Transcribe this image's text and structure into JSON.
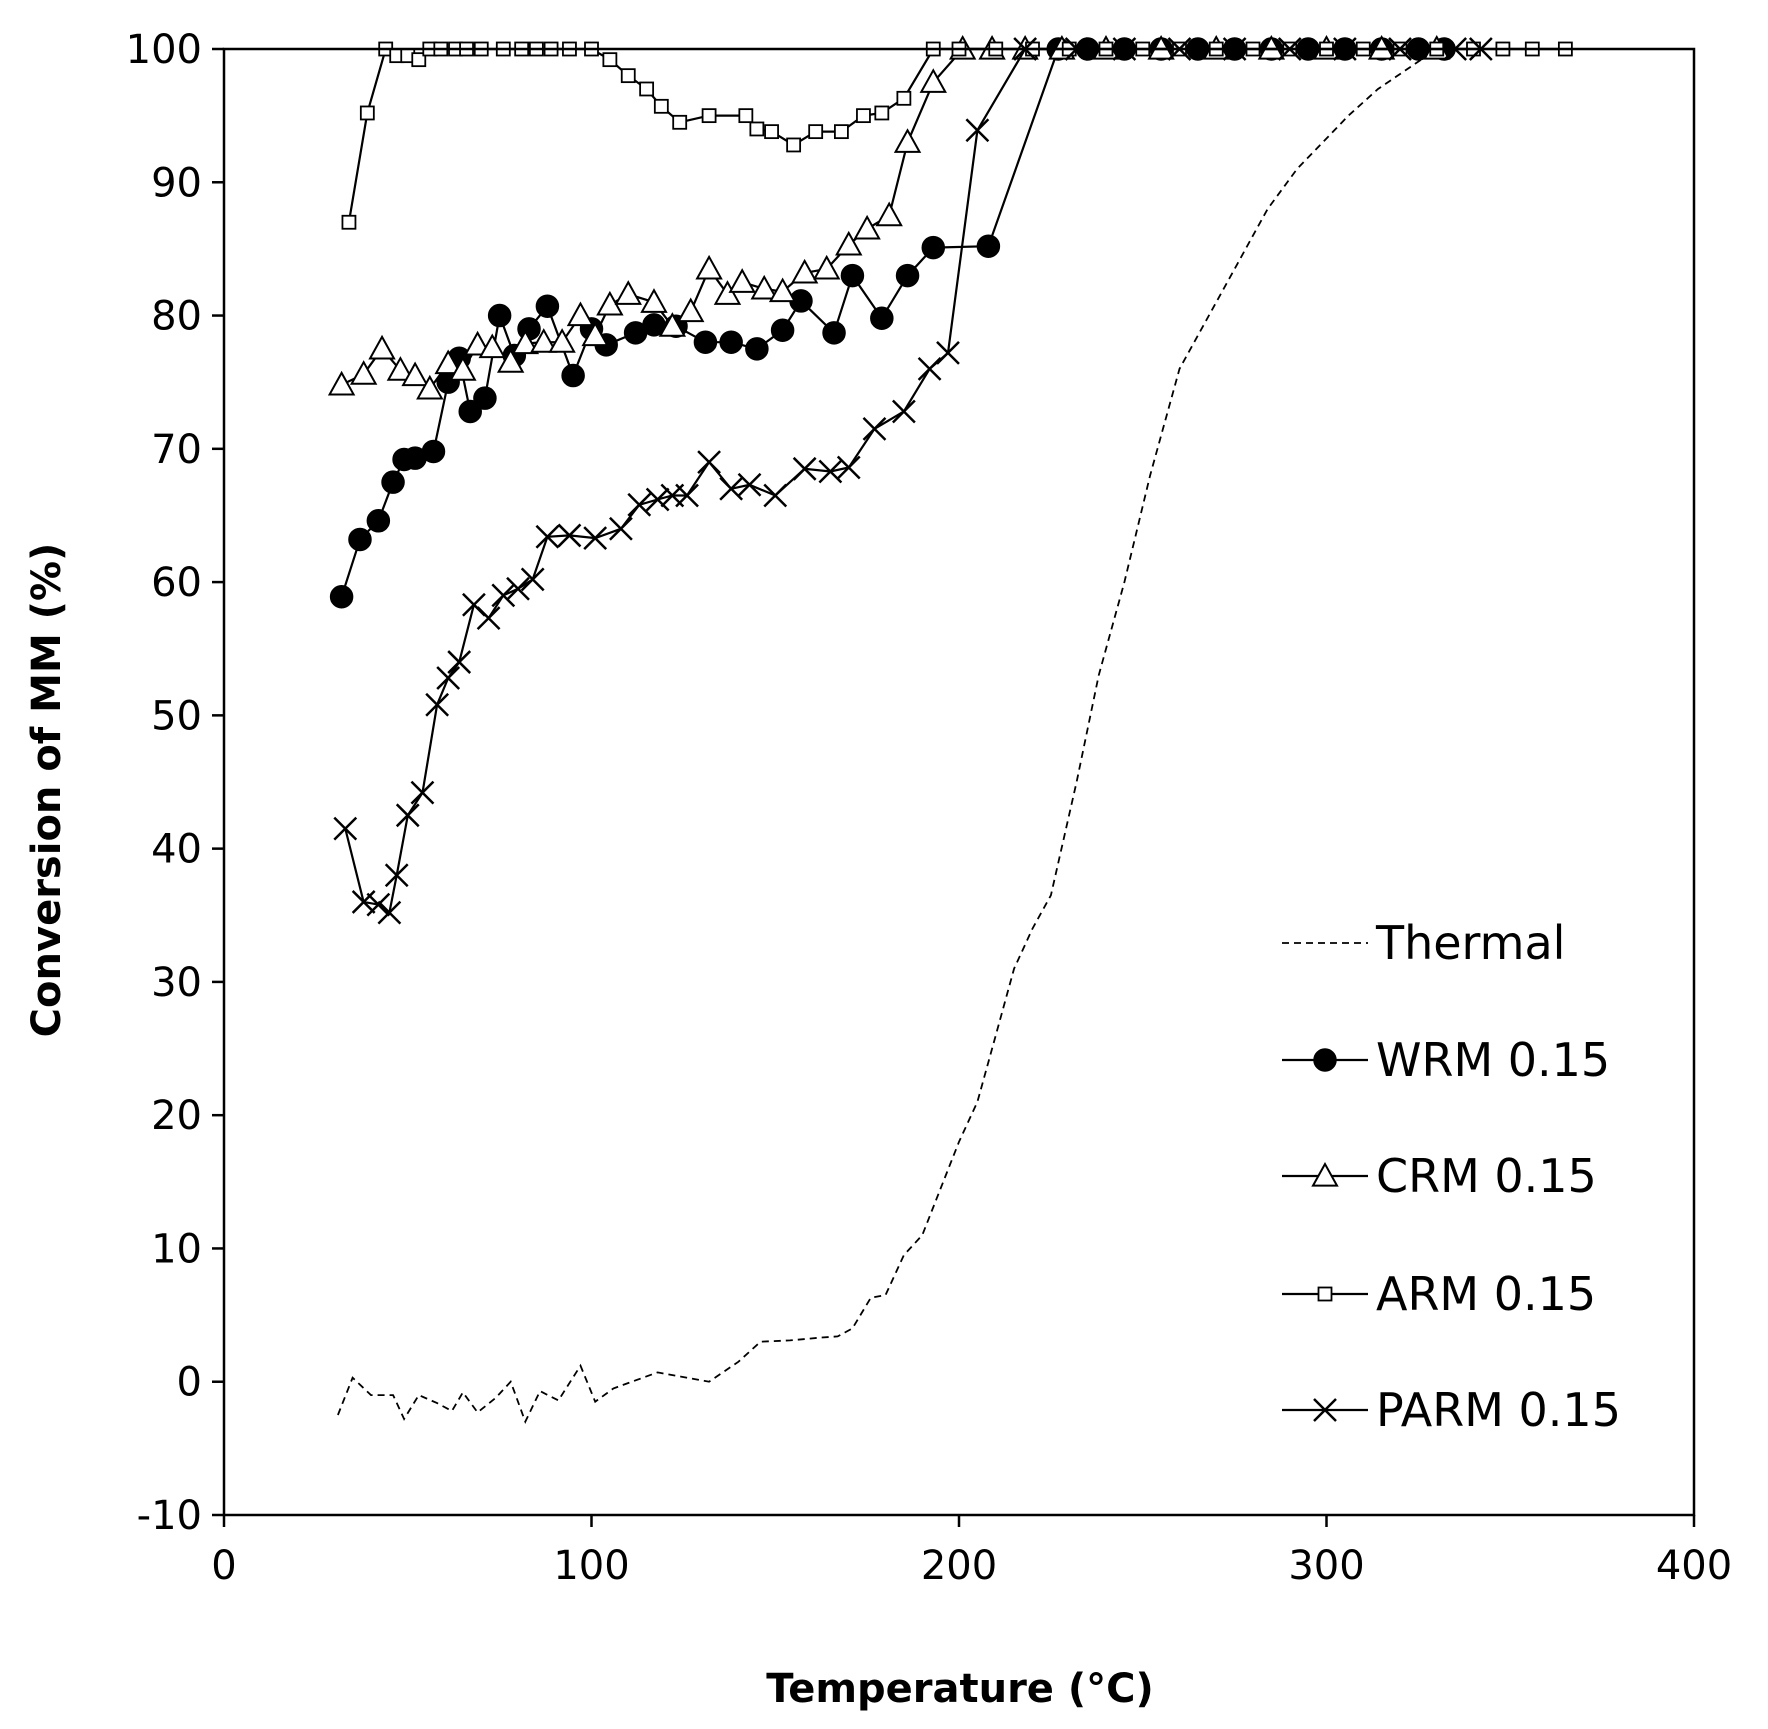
{
  "chart_data": {
    "type": "line",
    "title": "",
    "xlabel": "Temperature (°C)",
    "ylabel": "Conversion of MM (%)",
    "xlim": [
      0,
      400
    ],
    "ylim": [
      -10,
      100
    ],
    "xticks": [
      0,
      100,
      200,
      300,
      400
    ],
    "yticks": [
      -10,
      0,
      10,
      20,
      30,
      40,
      50,
      60,
      70,
      80,
      90,
      100
    ],
    "grid": false,
    "legend_position": "bottom-right",
    "series": [
      {
        "name": "Thermal",
        "style": "dashed",
        "marker": "none",
        "x": [
          31,
          35,
          40,
          46,
          49,
          53,
          58,
          62,
          65,
          69,
          74,
          78,
          82,
          86,
          91,
          97,
          101,
          106,
          111,
          118,
          124,
          132,
          140,
          146,
          154,
          162,
          167,
          171,
          176,
          180,
          185,
          190,
          195,
          200,
          205,
          210,
          215,
          220,
          225,
          232,
          238,
          245,
          252,
          260,
          268,
          276,
          284,
          292,
          299,
          306,
          314,
          322,
          330,
          338,
          345
        ],
        "y": [
          -2.5,
          0.3,
          -1,
          -1,
          -2.8,
          -1,
          -1.6,
          -2.2,
          -0.8,
          -2.3,
          -1.2,
          0,
          -3,
          -0.7,
          -1.4,
          1.2,
          -1.5,
          -0.5,
          0,
          0.7,
          0.4,
          0,
          1.5,
          3,
          3.1,
          3.3,
          3.4,
          4,
          6.3,
          6.5,
          9.5,
          11,
          14.5,
          18,
          21,
          26,
          31,
          34,
          36.5,
          45,
          53,
          60,
          68,
          76,
          80,
          84,
          88,
          91,
          93,
          95,
          97,
          98.5,
          100,
          100,
          100
        ]
      },
      {
        "name": "WRM 0.15",
        "style": "solid",
        "marker": "filled-circle",
        "x": [
          32,
          37,
          42,
          46,
          49,
          52,
          57,
          61,
          64,
          67,
          71,
          75,
          79,
          83,
          88,
          95,
          100,
          104,
          112,
          117,
          123,
          131,
          138,
          145,
          152,
          157,
          166,
          171,
          179,
          186,
          193,
          208,
          227,
          235,
          245,
          255,
          265,
          275,
          285,
          295,
          305,
          315,
          325,
          332
        ],
        "y": [
          58.9,
          63.2,
          64.6,
          67.5,
          69.2,
          69.3,
          69.8,
          75,
          76.8,
          72.8,
          73.8,
          80,
          77,
          79,
          80.7,
          75.5,
          79,
          77.8,
          78.7,
          79.3,
          79.2,
          78,
          78,
          77.5,
          78.9,
          81.1,
          78.7,
          83,
          79.8,
          83,
          85.1,
          85.2,
          100,
          100,
          100,
          100,
          100,
          100,
          100,
          100,
          100,
          100,
          100,
          100
        ]
      },
      {
        "name": "CRM 0.15",
        "style": "solid",
        "marker": "open-triangle",
        "x": [
          32,
          38,
          43,
          48,
          52,
          56,
          61,
          65,
          69,
          73,
          78,
          82,
          87,
          92,
          97,
          101,
          105,
          110,
          117,
          122,
          127,
          132,
          137,
          141,
          147,
          152,
          158,
          164,
          170,
          175,
          181,
          186,
          193,
          201,
          209,
          218,
          228,
          240,
          255,
          270,
          285,
          300,
          315,
          330
        ],
        "y": [
          74.8,
          75.6,
          77.5,
          75.9,
          75.5,
          74.5,
          76.4,
          75.9,
          77.8,
          77.6,
          76.5,
          77.9,
          78,
          78,
          80,
          78.5,
          80.8,
          81.6,
          81,
          79.2,
          80.3,
          83.5,
          81.6,
          82.5,
          82,
          81.8,
          83.2,
          83.5,
          85.3,
          86.5,
          87.5,
          93,
          97.5,
          100,
          100,
          100,
          100,
          100,
          100,
          100,
          100,
          100,
          100,
          100
        ]
      },
      {
        "name": "ARM 0.15",
        "style": "solid",
        "marker": "open-square",
        "x": [
          34,
          39,
          44,
          47,
          50,
          53,
          56,
          59,
          63,
          66,
          70,
          76,
          81,
          85,
          89,
          94,
          100,
          105,
          110,
          115,
          119,
          124,
          132,
          142,
          145,
          149,
          155,
          161,
          168,
          174,
          179,
          185,
          193,
          200,
          210,
          220,
          230,
          240,
          250,
          260,
          270,
          280,
          290,
          300,
          310,
          320,
          330,
          340,
          348,
          356,
          365
        ],
        "y": [
          87,
          95.2,
          100,
          99.5,
          99.5,
          99.2,
          100,
          100,
          100,
          100,
          100,
          100,
          100,
          100,
          100,
          100,
          100,
          99.2,
          98,
          97,
          95.7,
          94.5,
          95,
          95,
          94,
          93.8,
          92.8,
          93.8,
          93.8,
          95,
          95.2,
          96.3,
          100,
          100,
          100,
          100,
          100,
          100,
          100,
          100,
          100,
          100,
          100,
          100,
          100,
          100,
          100,
          100,
          100,
          100,
          100
        ]
      },
      {
        "name": "PARM 0.15",
        "style": "solid",
        "marker": "x",
        "x": [
          33,
          38,
          42,
          45,
          47,
          50,
          54,
          58,
          61,
          64,
          68,
          72,
          76,
          80,
          84,
          88,
          94,
          101,
          108,
          113,
          118,
          122,
          126,
          132,
          138,
          143,
          150,
          158,
          165,
          170,
          177,
          185,
          192,
          197,
          205,
          218,
          232,
          245,
          260,
          275,
          290,
          305,
          320,
          335,
          342
        ],
        "y": [
          41.5,
          36,
          35.8,
          35.2,
          38,
          42.5,
          44.2,
          50.8,
          52.8,
          54,
          58.3,
          57.3,
          59,
          59.5,
          60.2,
          63.4,
          63.5,
          63.3,
          64,
          65.8,
          66.2,
          66.5,
          66.5,
          69,
          67,
          67.3,
          66.5,
          68.5,
          68.3,
          68.6,
          71.5,
          72.8,
          76,
          77.2,
          93.9,
          100,
          100,
          100,
          100,
          100,
          100,
          100,
          100,
          100,
          100
        ]
      }
    ]
  }
}
